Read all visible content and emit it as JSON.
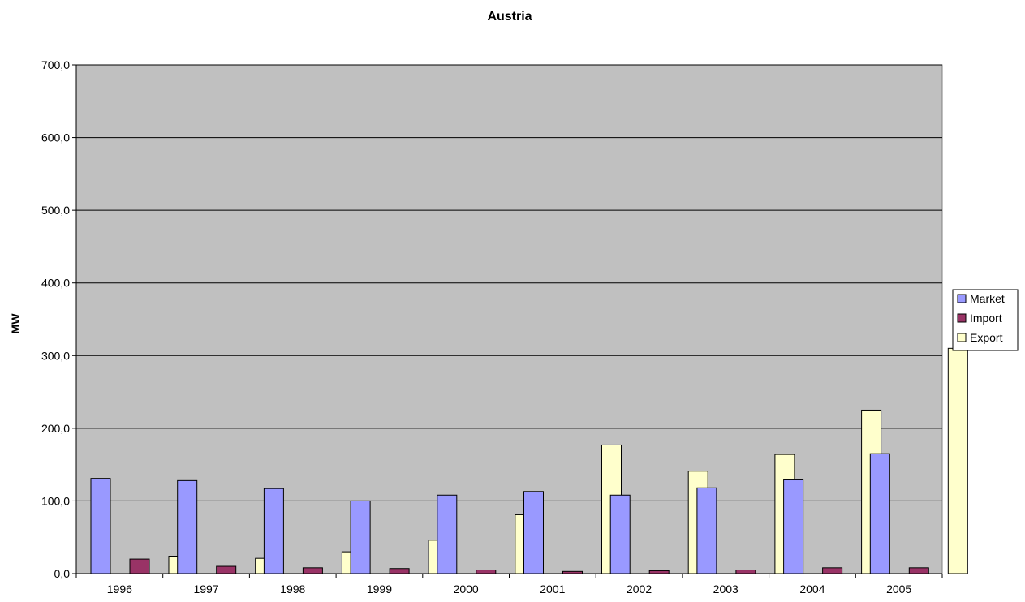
{
  "chart_data": {
    "type": "bar",
    "title": "Austria",
    "xlabel": "",
    "ylabel": "MW",
    "ylim": [
      0,
      700
    ],
    "yticks": [
      0,
      100,
      200,
      300,
      400,
      500,
      600,
      700
    ],
    "ytick_labels": [
      "0,0",
      "100,0",
      "200,0",
      "300,0",
      "400,0",
      "500,0",
      "600,0",
      "700,0"
    ],
    "categories": [
      "1996",
      "1997",
      "1998",
      "1999",
      "2000",
      "2001",
      "2002",
      "2003",
      "2004",
      "2005"
    ],
    "series": [
      {
        "name": "Market",
        "color": "#9999FF",
        "values": [
          131,
          128,
          117,
          100,
          108,
          113,
          108,
          118,
          129,
          165
        ]
      },
      {
        "name": "Import",
        "color": "#993366",
        "values": [
          20,
          10,
          8,
          7,
          5,
          3,
          4,
          5,
          8,
          8
        ]
      },
      {
        "name": "Export",
        "color": "#FFFFCC",
        "values": [
          24,
          21,
          30,
          46,
          81,
          177,
          141,
          164,
          225,
          310
        ]
      }
    ],
    "grid": true,
    "plot_background": "#C0C0C0",
    "legend_position": "right"
  }
}
